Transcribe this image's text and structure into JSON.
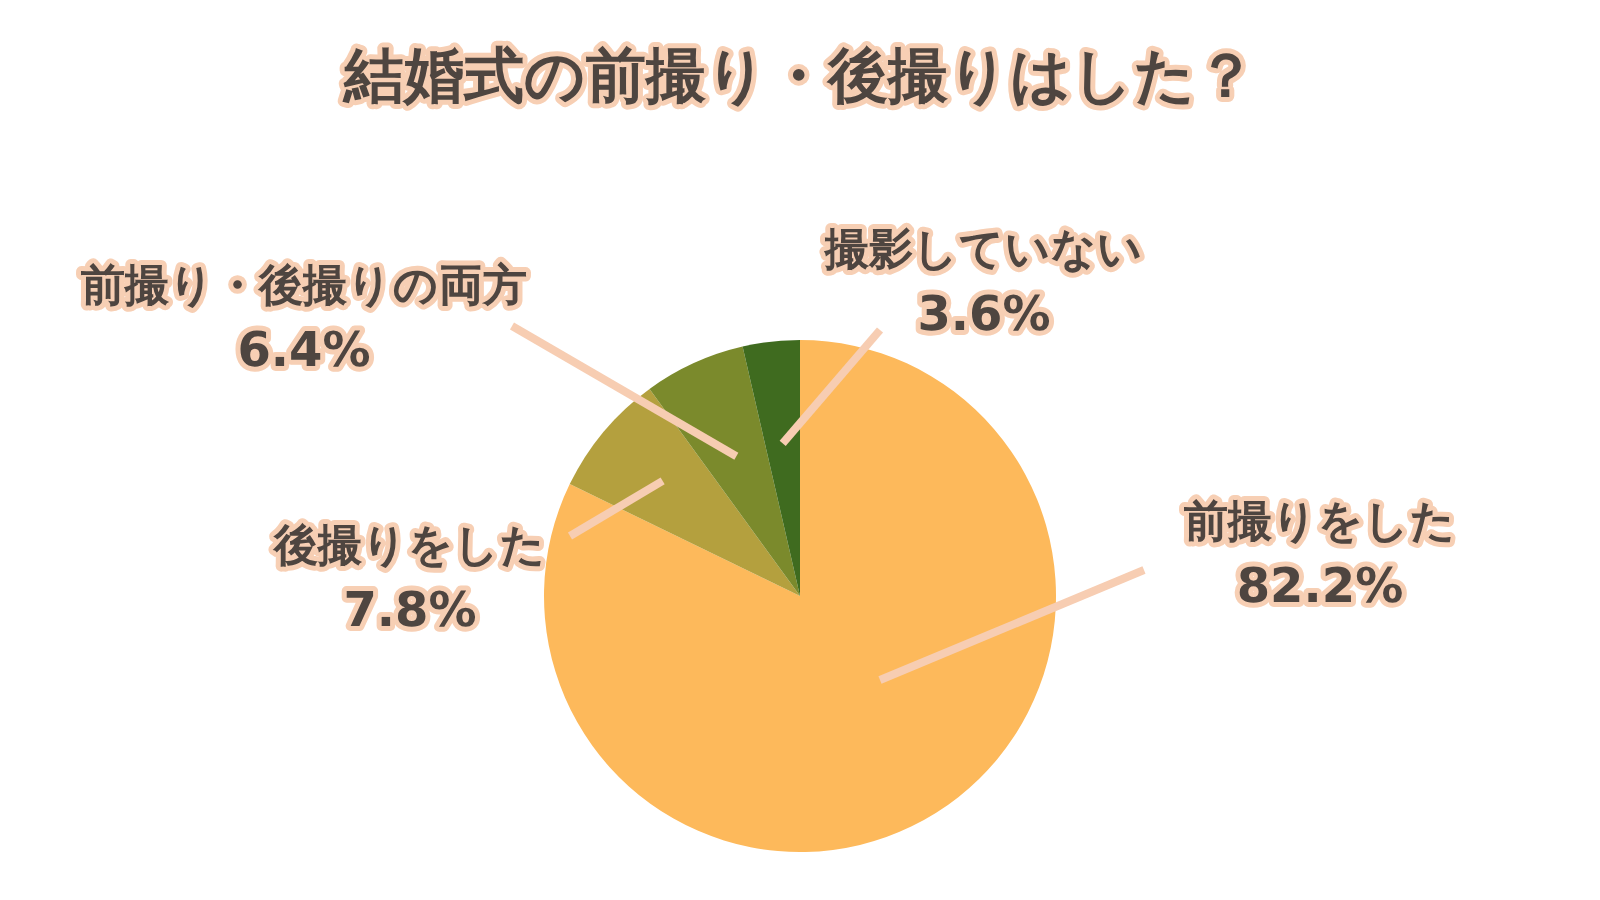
{
  "chart_data": {
    "type": "pie",
    "title": "結婚式の前撮り・後撮りはした？",
    "categories": [
      "前撮りをした",
      "後撮りをした",
      "前撮り・後撮りの両方",
      "撮影していない"
    ],
    "values": [
      82.2,
      7.8,
      6.4,
      3.6
    ],
    "value_labels": [
      "82.2%",
      "7.8%",
      "6.4%",
      "3.6%"
    ],
    "colors": [
      "#fdb95b",
      "#b4a03e",
      "#7b8a2c",
      "#3f6b1f"
    ]
  }
}
